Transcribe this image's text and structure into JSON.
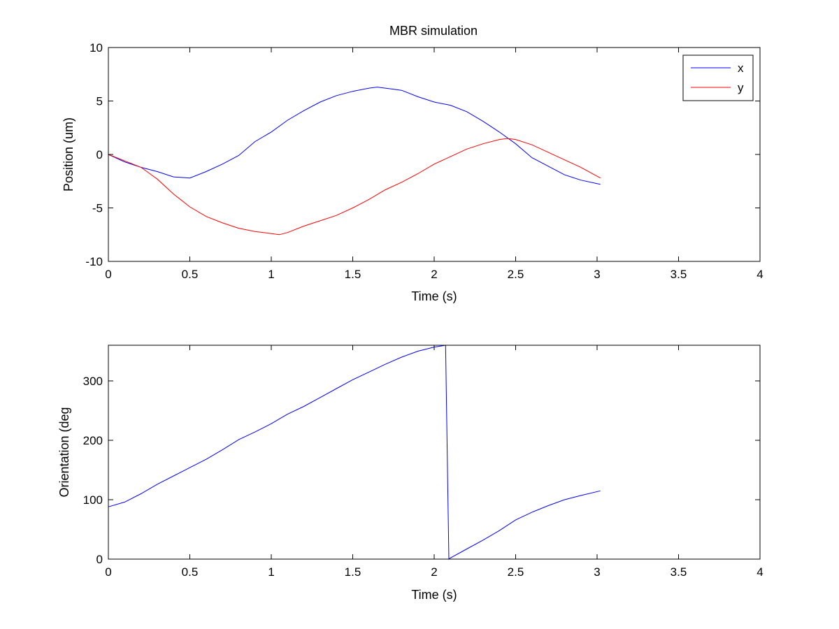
{
  "chart_data": [
    {
      "type": "line",
      "title": "MBR simulation",
      "xlabel": "Time (s)",
      "ylabel": "Position (um)",
      "xlim": [
        0,
        4
      ],
      "ylim": [
        -10,
        10
      ],
      "xticks": [
        0,
        0.5,
        1,
        1.5,
        2,
        2.5,
        3,
        3.5,
        4
      ],
      "xtick_labels": [
        "0",
        "0.5",
        "1",
        "1.5",
        "2",
        "2.5",
        "3",
        "3.5",
        "4"
      ],
      "yticks": [
        -10,
        -5,
        0,
        5,
        10
      ],
      "ytick_labels": [
        "-10",
        "-5",
        "0",
        "5",
        "10"
      ],
      "grid": false,
      "legend": "top-right",
      "series": [
        {
          "name": "x",
          "color": "#0000ff",
          "x": [
            0,
            0.1,
            0.2,
            0.3,
            0.4,
            0.5,
            0.6,
            0.7,
            0.8,
            0.9,
            1.0,
            1.1,
            1.2,
            1.3,
            1.4,
            1.5,
            1.6,
            1.65,
            1.7,
            1.8,
            1.9,
            2.0,
            2.1,
            2.2,
            2.3,
            2.4,
            2.5,
            2.6,
            2.7,
            2.8,
            2.9,
            3.02
          ],
          "y": [
            0,
            -0.7,
            -1.2,
            -1.6,
            -2.1,
            -2.2,
            -1.6,
            -0.9,
            -0.1,
            1.2,
            2.1,
            3.2,
            4.1,
            4.9,
            5.5,
            5.9,
            6.2,
            6.3,
            6.2,
            6.0,
            5.4,
            4.9,
            4.6,
            4.0,
            3.1,
            2.1,
            1.0,
            -0.3,
            -1.1,
            -1.9,
            -2.4,
            -2.8
          ]
        },
        {
          "name": "y",
          "color": "#ff0000",
          "x": [
            0,
            0.1,
            0.2,
            0.3,
            0.4,
            0.5,
            0.6,
            0.7,
            0.8,
            0.9,
            1.0,
            1.05,
            1.1,
            1.2,
            1.3,
            1.4,
            1.5,
            1.6,
            1.7,
            1.8,
            1.9,
            2.0,
            2.1,
            2.2,
            2.3,
            2.4,
            2.45,
            2.5,
            2.6,
            2.7,
            2.8,
            2.9,
            3.02
          ],
          "y": [
            0,
            -0.6,
            -1.2,
            -2.3,
            -3.7,
            -4.9,
            -5.8,
            -6.4,
            -6.9,
            -7.2,
            -7.4,
            -7.5,
            -7.3,
            -6.7,
            -6.2,
            -5.7,
            -5.0,
            -4.2,
            -3.3,
            -2.6,
            -1.8,
            -0.9,
            -0.2,
            0.5,
            1.0,
            1.4,
            1.5,
            1.4,
            0.9,
            0.2,
            -0.5,
            -1.2,
            -2.2
          ]
        }
      ]
    },
    {
      "type": "line",
      "xlabel": "Time (s)",
      "ylabel": "Orientation (deg",
      "xlim": [
        0,
        4
      ],
      "ylim": [
        0,
        360
      ],
      "xticks": [
        0,
        0.5,
        1,
        1.5,
        2,
        2.5,
        3,
        3.5,
        4
      ],
      "xtick_labels": [
        "0",
        "0.5",
        "1",
        "1.5",
        "2",
        "2.5",
        "3",
        "3.5",
        "4"
      ],
      "yticks": [
        0,
        100,
        200,
        300
      ],
      "ytick_labels": [
        "0",
        "100",
        "200",
        "300"
      ],
      "grid": false,
      "series": [
        {
          "color": "#0000ff",
          "x": [
            0,
            0.1,
            0.2,
            0.3,
            0.4,
            0.5,
            0.6,
            0.7,
            0.8,
            0.9,
            1.0,
            1.1,
            1.2,
            1.3,
            1.4,
            1.5,
            1.6,
            1.7,
            1.8,
            1.9,
            2.0,
            2.07,
            2.09,
            2.1,
            2.2,
            2.3,
            2.4,
            2.5,
            2.6,
            2.7,
            2.8,
            2.9,
            3.02
          ],
          "y": [
            88,
            96,
            110,
            126,
            140,
            154,
            168,
            184,
            201,
            214,
            228,
            244,
            257,
            272,
            287,
            302,
            315,
            328,
            340,
            350,
            357,
            360,
            0,
            2,
            17,
            32,
            48,
            66,
            79,
            90,
            100,
            107,
            115
          ]
        }
      ]
    }
  ]
}
